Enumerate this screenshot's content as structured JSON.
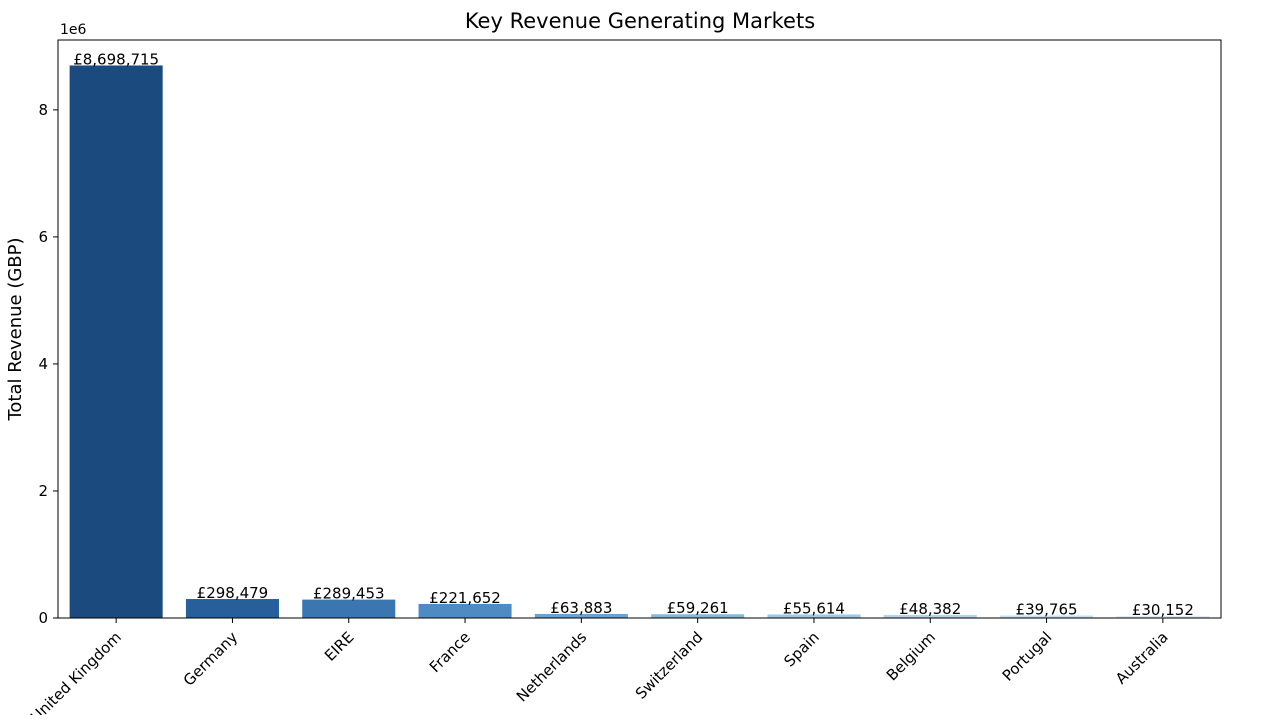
{
  "chart_data": {
    "type": "bar",
    "title": "Key Revenue Generating Markets",
    "xlabel": "",
    "ylabel": "Total Revenue (GBP)",
    "y_offset_label": "1e6",
    "ylim": [
      0,
      9100000
    ],
    "yticks": [
      0,
      2000000,
      4000000,
      6000000,
      8000000
    ],
    "ytick_labels": [
      "0",
      "2",
      "4",
      "6",
      "8"
    ],
    "categories": [
      "United Kingdom",
      "Germany",
      "EIRE",
      "France",
      "Netherlands",
      "Switzerland",
      "Spain",
      "Belgium",
      "Portugal",
      "Australia"
    ],
    "values": [
      8698715,
      298479,
      289453,
      221652,
      63883,
      59261,
      55614,
      48382,
      39765,
      30152
    ],
    "value_labels": [
      "£8,698,715",
      "£298,479",
      "£289,453",
      "£221,652",
      "£63,883",
      "£59,261",
      "£55,614",
      "£48,382",
      "£39,765",
      "£30,152"
    ],
    "colors": [
      "#1b4a7e",
      "#265f99",
      "#3a77b0",
      "#4d8bc2",
      "#6aa3cf",
      "#86b8da",
      "#9fc8e3",
      "#b5d4ea",
      "#c9e0f0",
      "#deebf7"
    ],
    "grid": false,
    "legend": "none"
  }
}
